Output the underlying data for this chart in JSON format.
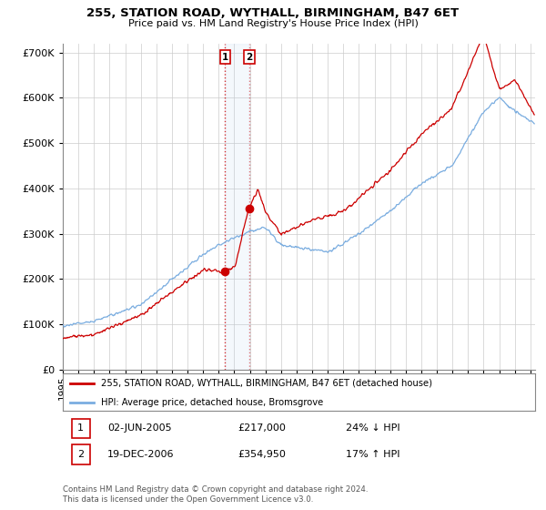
{
  "title_line1": "255, STATION ROAD, WYTHALL, BIRMINGHAM, B47 6ET",
  "title_line2": "Price paid vs. HM Land Registry's House Price Index (HPI)",
  "legend_label_red": "255, STATION ROAD, WYTHALL, BIRMINGHAM, B47 6ET (detached house)",
  "legend_label_blue": "HPI: Average price, detached house, Bromsgrove",
  "annotation1_num": "1",
  "annotation1_date": "02-JUN-2005",
  "annotation1_price": "£217,000",
  "annotation1_hpi": "24% ↓ HPI",
  "annotation2_num": "2",
  "annotation2_date": "19-DEC-2006",
  "annotation2_price": "£354,950",
  "annotation2_hpi": "17% ↑ HPI",
  "footer": "Contains HM Land Registry data © Crown copyright and database right 2024.\nThis data is licensed under the Open Government Licence v3.0.",
  "red_color": "#cc0000",
  "blue_color": "#7aade0",
  "marker1_x": 2005.42,
  "marker1_y": 217000,
  "marker2_x": 2006.96,
  "marker2_y": 354950,
  "vline_x1": 2005.42,
  "vline_x2": 2006.96,
  "ylim": [
    0,
    720000
  ],
  "xlim_start": 1995.0,
  "xlim_end": 2025.3,
  "yticks": [
    0,
    100000,
    200000,
    300000,
    400000,
    500000,
    600000,
    700000
  ],
  "xtick_years": [
    1995,
    1996,
    1997,
    1998,
    1999,
    2000,
    2001,
    2002,
    2003,
    2004,
    2005,
    2006,
    2007,
    2008,
    2009,
    2010,
    2011,
    2012,
    2013,
    2014,
    2015,
    2016,
    2017,
    2018,
    2019,
    2020,
    2021,
    2022,
    2023,
    2024,
    2025
  ]
}
